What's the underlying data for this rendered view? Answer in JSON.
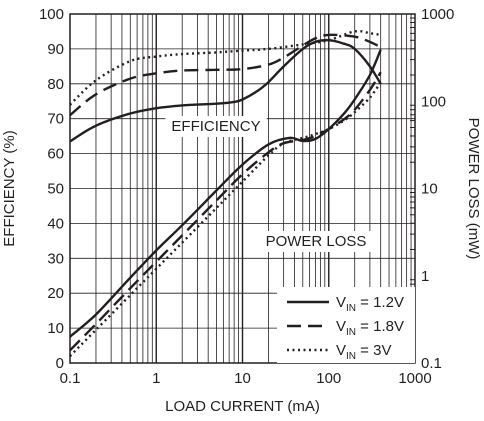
{
  "chart_data": {
    "type": "line",
    "xlabel": "LOAD CURRENT (mA)",
    "ylabel_left": "EFFICIENCY (%)",
    "ylabel_right": "POWER LOSS (mW)",
    "x_scale": "log",
    "xlim": [
      0.1,
      1000
    ],
    "ylim_left": [
      0,
      100
    ],
    "ylim_right": [
      0.1,
      1000
    ],
    "y_right_scale": "log",
    "x_ticks": [
      "0.1",
      "1",
      "10",
      "100",
      "1000"
    ],
    "y_left_ticks": [
      "0",
      "10",
      "20",
      "30",
      "40",
      "50",
      "60",
      "70",
      "80",
      "90",
      "100"
    ],
    "y_right_ticks": [
      "0.1",
      "1",
      "10",
      "100",
      "1000"
    ],
    "annotations": {
      "efficiency": "EFFICIENCY",
      "power_loss": "POWER LOSS"
    },
    "grid": true,
    "legend_position": "bottom-right",
    "legend": [
      {
        "prefix": "V",
        "subscript": "IN",
        "value": " = 1.2V",
        "style": "solid"
      },
      {
        "prefix": "V",
        "subscript": "IN",
        "value": " = 1.8V",
        "style": "dashed"
      },
      {
        "prefix": "V",
        "subscript": "IN",
        "value": " = 3V",
        "style": "dotted"
      }
    ],
    "series": [
      {
        "group": "efficiency",
        "legend_index": 0,
        "style": "solid",
        "x": [
          0.1,
          0.2,
          0.5,
          1,
          2,
          5,
          8,
          10,
          15,
          20,
          30,
          50,
          70,
          100,
          150,
          200,
          300,
          400
        ],
        "y": [
          63.5,
          68,
          71.5,
          73,
          73.8,
          74.3,
          74.8,
          75.5,
          78,
          80.5,
          85,
          90,
          92,
          92.5,
          91.5,
          90,
          85,
          80
        ]
      },
      {
        "group": "efficiency",
        "legend_index": 1,
        "style": "dashed",
        "x": [
          0.1,
          0.2,
          0.5,
          1,
          2,
          5,
          10,
          20,
          30,
          50,
          70,
          100,
          200,
          300,
          400
        ],
        "y": [
          71,
          77,
          81.5,
          83,
          83.8,
          84,
          84.2,
          85.5,
          87.5,
          91,
          93,
          94,
          93.5,
          92,
          90.5
        ]
      },
      {
        "group": "efficiency",
        "legend_index": 2,
        "style": "dotted",
        "x": [
          0.1,
          0.2,
          0.5,
          1,
          2,
          5,
          10,
          20,
          50,
          100,
          200,
          300,
          400
        ],
        "y": [
          74,
          81,
          86.5,
          87.8,
          88.5,
          89,
          89.5,
          90,
          91.3,
          92.5,
          95,
          94.5,
          94
        ]
      },
      {
        "group": "power_loss",
        "legend_index": 0,
        "style": "solid",
        "x": [
          0.1,
          0.2,
          0.5,
          1,
          2,
          5,
          10,
          20,
          35,
          50,
          70,
          100,
          150,
          200,
          300,
          400
        ],
        "y": [
          0.2,
          0.36,
          0.95,
          1.95,
          3.8,
          9.5,
          18.8,
          32,
          38,
          35,
          37,
          48,
          72,
          105,
          200,
          390
        ]
      },
      {
        "group": "power_loss",
        "legend_index": 1,
        "style": "dashed",
        "x": [
          0.1,
          0.2,
          0.5,
          1,
          2,
          5,
          10,
          20,
          30,
          50,
          70,
          100,
          150,
          200,
          300,
          400
        ],
        "y": [
          0.14,
          0.28,
          0.72,
          1.45,
          2.9,
          7.3,
          14.6,
          26,
          33,
          36,
          40,
          48,
          62,
          80,
          135,
          215
        ]
      },
      {
        "group": "power_loss",
        "legend_index": 2,
        "style": "dotted",
        "x": [
          0.1,
          0.2,
          0.5,
          1,
          2,
          5,
          10,
          20,
          30,
          50,
          70,
          100,
          150,
          200,
          300,
          400
        ],
        "y": [
          0.12,
          0.24,
          0.6,
          1.2,
          2.4,
          6,
          12,
          24,
          33,
          38,
          42,
          48,
          60,
          75,
          110,
          165
        ]
      }
    ]
  }
}
